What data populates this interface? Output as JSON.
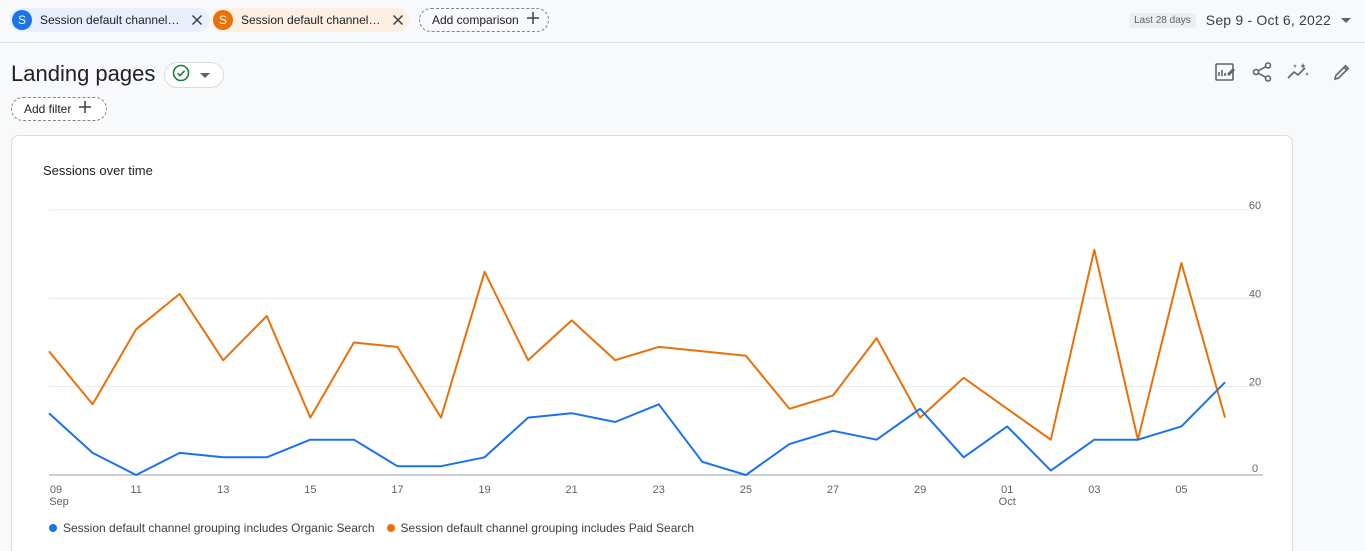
{
  "comparisons": {
    "items": [
      {
        "badge": "S",
        "label": "Session default channel grouping includes Organic Search",
        "color": "#1a73e8"
      },
      {
        "badge": "S",
        "label": "Session default channel grouping includes Paid Search",
        "color": "#e8710a"
      }
    ],
    "add_label": "Add comparison"
  },
  "date_range": {
    "label": "Last 28 days",
    "value": "Sep 9 - Oct 6, 2022"
  },
  "header": {
    "title": "Landing pages",
    "add_filter_label": "Add filter"
  },
  "toolbar": {
    "icons": [
      "customize-report-icon",
      "share-icon",
      "insights-icon",
      "edit-icon"
    ]
  },
  "card": {
    "title": "Sessions over time"
  },
  "chart_data": {
    "type": "line",
    "title": "Sessions over time",
    "x": [
      "09",
      "10",
      "11",
      "12",
      "13",
      "14",
      "15",
      "16",
      "17",
      "18",
      "19",
      "20",
      "21",
      "22",
      "23",
      "24",
      "25",
      "26",
      "27",
      "28",
      "29",
      "30",
      "01",
      "02",
      "03",
      "04",
      "05",
      "06"
    ],
    "x_tick_labels": [
      "09",
      "11",
      "13",
      "15",
      "17",
      "19",
      "21",
      "23",
      "25",
      "27",
      "29",
      "01",
      "03",
      "05"
    ],
    "x_month_labels": [
      {
        "at": "09",
        "label": "Sep"
      },
      {
        "at": "01",
        "label": "Oct"
      }
    ],
    "y_ticks": [
      0,
      20,
      40,
      60
    ],
    "ylim": [
      0,
      60
    ],
    "y_axis_position": "right",
    "grid": true,
    "legend_position": "bottom-left",
    "series": [
      {
        "name": "Session default channel grouping includes Organic Search",
        "color": "#1a73e8",
        "values": [
          14,
          5,
          0,
          5,
          4,
          4,
          8,
          8,
          2,
          2,
          4,
          13,
          14,
          12,
          16,
          3,
          0,
          7,
          10,
          8,
          15,
          4,
          11,
          1,
          8,
          8,
          11,
          21
        ]
      },
      {
        "name": "Session default channel grouping includes Paid Search",
        "color": "#e8710a",
        "values": [
          28,
          16,
          33,
          41,
          26,
          36,
          13,
          30,
          29,
          13,
          46,
          26,
          35,
          26,
          29,
          28,
          27,
          15,
          18,
          31,
          13,
          22,
          15,
          8,
          51,
          8,
          48,
          13
        ]
      }
    ]
  }
}
